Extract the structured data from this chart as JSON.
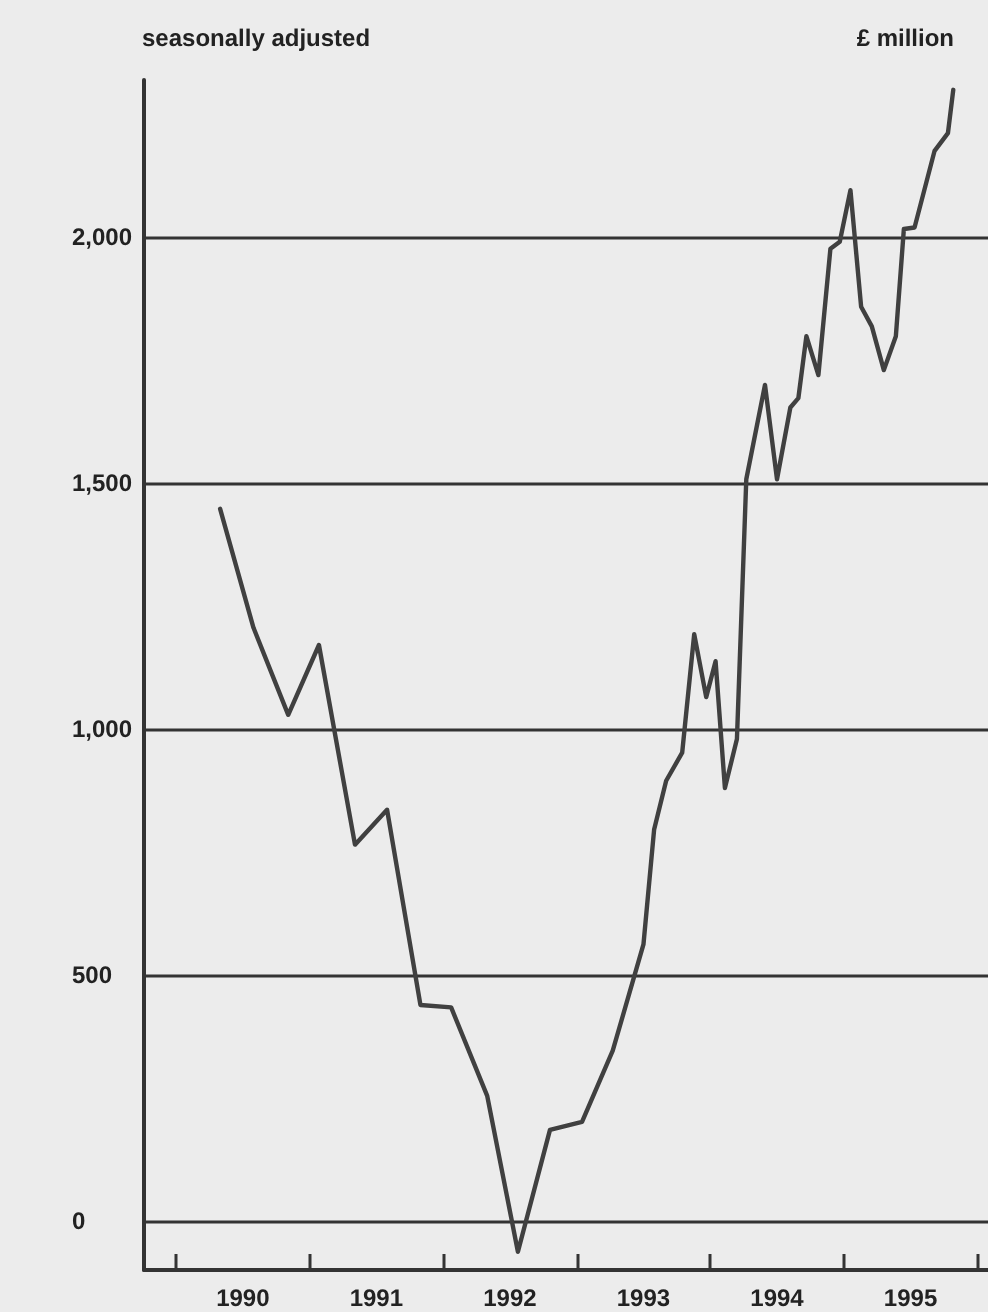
{
  "chart_data": {
    "type": "line",
    "subtitle": "seasonally adjusted",
    "ylabel": "£ million",
    "x": [
      1990.33,
      1990.58,
      1990.84,
      1991.07,
      1991.34,
      1991.58,
      1991.83,
      1992.06,
      1992.33,
      1992.56,
      1992.8,
      1993.04,
      1993.27,
      1993.5,
      1993.58,
      1993.67,
      1993.79,
      1993.88,
      1993.97,
      1994.04,
      1994.11,
      1994.2,
      1994.27,
      1994.41,
      1994.5,
      1994.6,
      1994.66,
      1994.72,
      1994.81,
      1994.9,
      1994.97,
      1995.05,
      1995.13,
      1995.21,
      1995.3,
      1995.39,
      1995.45,
      1995.53,
      1995.68,
      1995.78,
      1995.82
    ],
    "series": [
      {
        "color": "#404040",
        "values": [
          1448,
          1206,
          1029,
          1171,
          765,
          836,
          439,
          434,
          254,
          -63,
          185,
          201,
          346,
          562,
          796,
          895,
          952,
          1193,
          1065,
          1138,
          880,
          980,
          1508,
          1700,
          1508,
          1654,
          1673,
          1799,
          1720,
          1977,
          1991,
          2096,
          1859,
          1819,
          1730,
          1799,
          2017,
          2020,
          2176,
          2212,
          2300
        ]
      }
    ],
    "xlim": [
      1989.76,
      1996.08
    ],
    "xticks": [
      {
        "value": 1990,
        "label": null
      },
      {
        "value": 1990.5,
        "label": "1990"
      },
      {
        "value": 1991,
        "label": null
      },
      {
        "value": 1991.5,
        "label": "1991"
      },
      {
        "value": 1992,
        "label": null
      },
      {
        "value": 1992.5,
        "label": "1992"
      },
      {
        "value": 1993,
        "label": null
      },
      {
        "value": 1993.5,
        "label": "1993"
      },
      {
        "value": 1994,
        "label": null
      },
      {
        "value": 1994.5,
        "label": "1994"
      },
      {
        "value": 1995,
        "label": null
      },
      {
        "value": 1995.5,
        "label": "1995"
      },
      {
        "value": 1996,
        "label": null
      }
    ],
    "ylim": [
      -100,
      2320
    ],
    "yticks": [
      0,
      {
        "value": 500,
        "label": "500"
      },
      {
        "value": 1000,
        "label": "1,000"
      },
      {
        "value": 1500,
        "label": "1,500"
      },
      {
        "value": 2000,
        "label": "2,000"
      }
    ],
    "grid": "y",
    "marker": "none",
    "line_style": "solid"
  }
}
